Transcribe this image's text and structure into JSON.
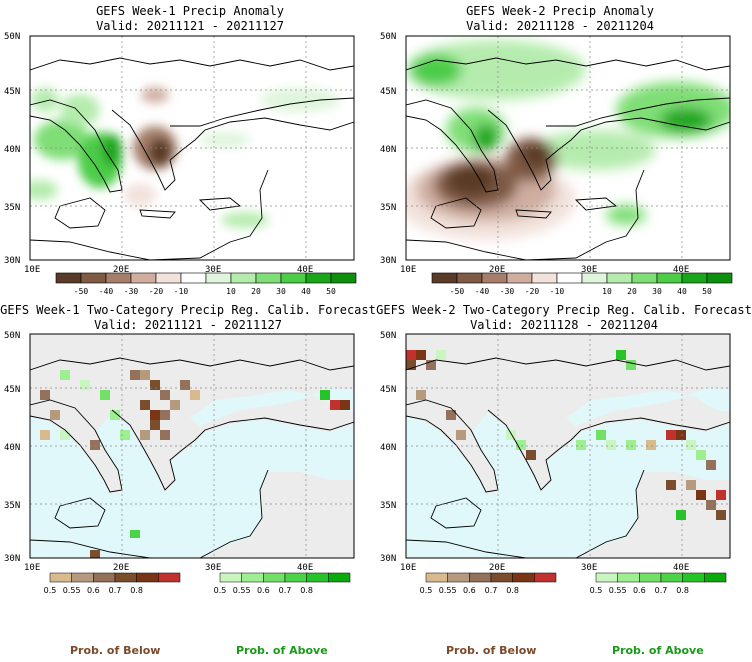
{
  "panels": [
    {
      "title": "GEFS Week-1 Precip Anomaly",
      "valid": "Valid: 20211121 - 20211127",
      "yticks": [
        "50N",
        "45N",
        "40N",
        "35N",
        "30N"
      ],
      "xticks": [
        "10E",
        "20E",
        "30E",
        "40E"
      ],
      "colorbar": {
        "colors": [
          "#5a3a28",
          "#7f5a44",
          "#a57f6b",
          "#cfaea0",
          "#f2e2dc",
          "#ffffff",
          "#dff5dc",
          "#b5ecae",
          "#7fde76",
          "#4ccc47",
          "#1aa61a",
          "#0d8f0d"
        ],
        "labels": [
          "-50",
          "-40",
          "-30",
          "-20",
          "-10",
          "10",
          "20",
          "30",
          "40",
          "50"
        ]
      }
    },
    {
      "title": "GEFS Week-2 Precip Anomaly",
      "valid": "Valid: 20211128 - 20211204",
      "yticks": [
        "50N",
        "45N",
        "40N",
        "35N",
        "30N"
      ],
      "xticks": [
        "10E",
        "20E",
        "30E",
        "40E"
      ],
      "colorbar": {
        "colors": [
          "#5a3a28",
          "#7f5a44",
          "#a57f6b",
          "#cfaea0",
          "#f2e2dc",
          "#ffffff",
          "#dff5dc",
          "#b5ecae",
          "#7fde76",
          "#4ccc47",
          "#1aa61a",
          "#0d8f0d"
        ],
        "labels": [
          "-50",
          "-40",
          "-30",
          "-20",
          "-10",
          "10",
          "20",
          "30",
          "40",
          "50"
        ]
      }
    },
    {
      "title": "GEFS Week-1 Two-Category Precip Reg. Calib. Forecast",
      "valid": "Valid: 20211121 - 20211127",
      "yticks": [
        "50N",
        "45N",
        "40N",
        "35N",
        "30N"
      ],
      "xticks": [
        "10E",
        "20E",
        "30E",
        "40E"
      ]
    },
    {
      "title": "GEFS Week-2 Two-Category Precip Reg. Calib. Forecast",
      "valid": "Valid: 20211128 - 20211204",
      "yticks": [
        "50N",
        "45N",
        "40N",
        "35N",
        "30N"
      ],
      "xticks": [
        "10E",
        "20E",
        "30E",
        "40E"
      ]
    }
  ],
  "prob_bars": {
    "below": {
      "colors": [
        "#d9b98e",
        "#b59a7e",
        "#93715a",
        "#7a4d2c",
        "#7a3614",
        "#c1322e"
      ],
      "labels": [
        "0.5",
        "0.55",
        "0.6",
        "0.7",
        "0.8"
      ]
    },
    "above": {
      "colors": [
        "#c9f5c0",
        "#9eef92",
        "#71e065",
        "#4cd447",
        "#27c427",
        "#0aaa0a"
      ],
      "labels": [
        "0.5",
        "0.55",
        "0.6",
        "0.7",
        "0.8"
      ]
    }
  },
  "bottom_labels": {
    "below": "Prob. of Below",
    "above": "Prob. of Above"
  },
  "colors": {
    "below_text": "#7a4a2a",
    "above_text": "#1a9a1a",
    "sea": "#e0f8fa",
    "land_gray": "#ececec"
  }
}
